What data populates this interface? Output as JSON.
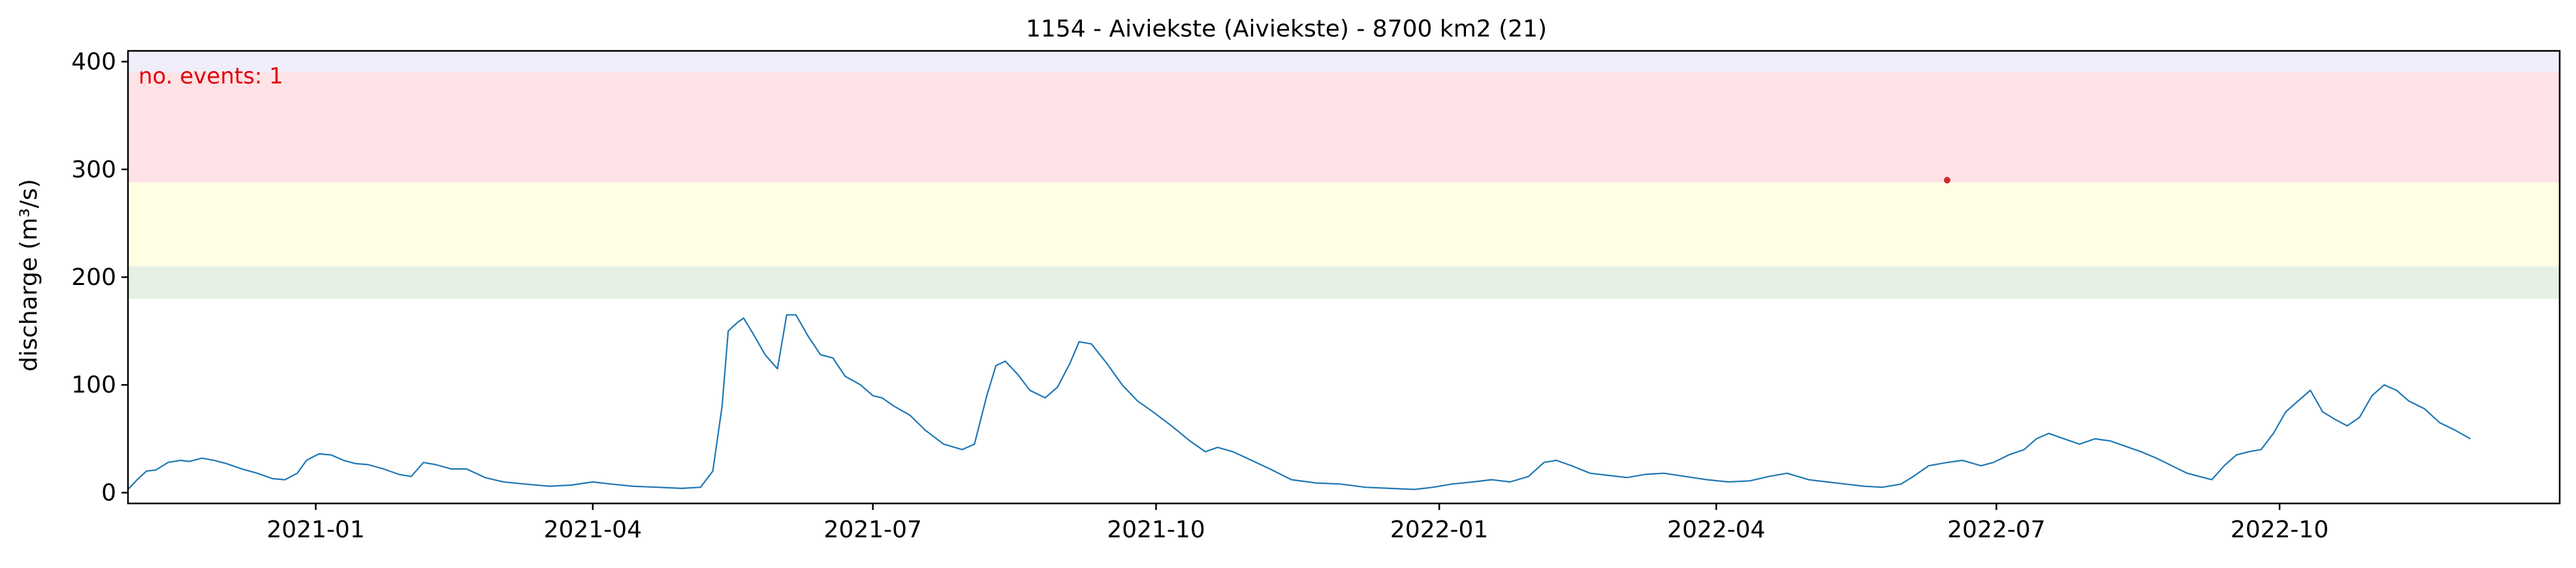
{
  "chart_data": {
    "type": "line",
    "title": "1154 - Aiviekste (Aiviekste) - 8700 km2 (21)",
    "xlabel": "",
    "ylabel": "discharge (m³/s)",
    "annotation": "no. events: 1",
    "annotation_color": "#e00000",
    "line_color": "#1f77b4",
    "event_marker_color": "#d62728",
    "grid": false,
    "xlim": [
      "2020-11-01",
      "2022-12-31"
    ],
    "ylim": [
      -10,
      410
    ],
    "yticks": [
      0,
      100,
      200,
      300,
      400
    ],
    "xticks": [
      {
        "date": "2021-01-01",
        "label": "2021-01"
      },
      {
        "date": "2021-04-01",
        "label": "2021-04"
      },
      {
        "date": "2021-07-01",
        "label": "2021-07"
      },
      {
        "date": "2021-10-01",
        "label": "2021-10"
      },
      {
        "date": "2022-01-01",
        "label": "2022-01"
      },
      {
        "date": "2022-04-01",
        "label": "2022-04"
      },
      {
        "date": "2022-07-01",
        "label": "2022-07"
      },
      {
        "date": "2022-10-01",
        "label": "2022-10"
      }
    ],
    "threshold_bands": [
      {
        "from": 180,
        "to": 210,
        "color": "#e4f1e4"
      },
      {
        "from": 210,
        "to": 288,
        "color": "#fefee4"
      },
      {
        "from": 288,
        "to": 390,
        "color": "#fee2e6"
      },
      {
        "from": 390,
        "to": 410,
        "color": "#efeefa"
      }
    ],
    "events": [
      {
        "date": "2022-06-15",
        "value": 290
      }
    ],
    "series": [
      {
        "points": [
          [
            "2020-11-01",
            3
          ],
          [
            "2020-11-04",
            12
          ],
          [
            "2020-11-07",
            20
          ],
          [
            "2020-11-10",
            21
          ],
          [
            "2020-11-14",
            28
          ],
          [
            "2020-11-18",
            30
          ],
          [
            "2020-11-21",
            29
          ],
          [
            "2020-11-25",
            32
          ],
          [
            "2020-11-29",
            30
          ],
          [
            "2020-12-03",
            27
          ],
          [
            "2020-12-08",
            22
          ],
          [
            "2020-12-13",
            18
          ],
          [
            "2020-12-18",
            13
          ],
          [
            "2020-12-22",
            12
          ],
          [
            "2020-12-26",
            18
          ],
          [
            "2020-12-29",
            30
          ],
          [
            "2021-01-02",
            36
          ],
          [
            "2021-01-06",
            35
          ],
          [
            "2021-01-10",
            30
          ],
          [
            "2021-01-14",
            27
          ],
          [
            "2021-01-18",
            26
          ],
          [
            "2021-01-23",
            22
          ],
          [
            "2021-01-28",
            17
          ],
          [
            "2021-02-01",
            15
          ],
          [
            "2021-02-05",
            28
          ],
          [
            "2021-02-09",
            26
          ],
          [
            "2021-02-14",
            22
          ],
          [
            "2021-02-19",
            22
          ],
          [
            "2021-02-25",
            14
          ],
          [
            "2021-03-03",
            10
          ],
          [
            "2021-03-10",
            8
          ],
          [
            "2021-03-18",
            6
          ],
          [
            "2021-03-25",
            7
          ],
          [
            "2021-04-01",
            10
          ],
          [
            "2021-04-07",
            8
          ],
          [
            "2021-04-14",
            6
          ],
          [
            "2021-04-22",
            5
          ],
          [
            "2021-04-30",
            4
          ],
          [
            "2021-05-06",
            5
          ],
          [
            "2021-05-10",
            20
          ],
          [
            "2021-05-13",
            80
          ],
          [
            "2021-05-15",
            150
          ],
          [
            "2021-05-18",
            158
          ],
          [
            "2021-05-20",
            162
          ],
          [
            "2021-05-23",
            148
          ],
          [
            "2021-05-27",
            128
          ],
          [
            "2021-05-31",
            115
          ],
          [
            "2021-06-03",
            165
          ],
          [
            "2021-06-06",
            165
          ],
          [
            "2021-06-10",
            145
          ],
          [
            "2021-06-14",
            128
          ],
          [
            "2021-06-18",
            125
          ],
          [
            "2021-06-22",
            108
          ],
          [
            "2021-06-27",
            100
          ],
          [
            "2021-07-01",
            90
          ],
          [
            "2021-07-04",
            88
          ],
          [
            "2021-07-08",
            80
          ],
          [
            "2021-07-13",
            72
          ],
          [
            "2021-07-18",
            58
          ],
          [
            "2021-07-24",
            45
          ],
          [
            "2021-07-30",
            40
          ],
          [
            "2021-08-03",
            45
          ],
          [
            "2021-08-07",
            90
          ],
          [
            "2021-08-10",
            118
          ],
          [
            "2021-08-13",
            122
          ],
          [
            "2021-08-17",
            110
          ],
          [
            "2021-08-21",
            95
          ],
          [
            "2021-08-26",
            88
          ],
          [
            "2021-08-30",
            98
          ],
          [
            "2021-09-03",
            120
          ],
          [
            "2021-09-06",
            140
          ],
          [
            "2021-09-10",
            138
          ],
          [
            "2021-09-15",
            120
          ],
          [
            "2021-09-20",
            100
          ],
          [
            "2021-09-25",
            85
          ],
          [
            "2021-09-30",
            75
          ],
          [
            "2021-10-06",
            62
          ],
          [
            "2021-10-12",
            48
          ],
          [
            "2021-10-17",
            38
          ],
          [
            "2021-10-21",
            42
          ],
          [
            "2021-10-26",
            38
          ],
          [
            "2021-11-01",
            30
          ],
          [
            "2021-11-07",
            22
          ],
          [
            "2021-11-14",
            12
          ],
          [
            "2021-11-22",
            9
          ],
          [
            "2021-11-30",
            8
          ],
          [
            "2021-12-08",
            5
          ],
          [
            "2021-12-16",
            4
          ],
          [
            "2021-12-24",
            3
          ],
          [
            "2021-12-30",
            5
          ],
          [
            "2022-01-05",
            8
          ],
          [
            "2022-01-12",
            10
          ],
          [
            "2022-01-18",
            12
          ],
          [
            "2022-01-24",
            10
          ],
          [
            "2022-01-30",
            15
          ],
          [
            "2022-02-04",
            28
          ],
          [
            "2022-02-08",
            30
          ],
          [
            "2022-02-13",
            25
          ],
          [
            "2022-02-19",
            18
          ],
          [
            "2022-02-25",
            16
          ],
          [
            "2022-03-03",
            14
          ],
          [
            "2022-03-09",
            17
          ],
          [
            "2022-03-15",
            18
          ],
          [
            "2022-03-22",
            15
          ],
          [
            "2022-03-29",
            12
          ],
          [
            "2022-04-05",
            10
          ],
          [
            "2022-04-12",
            11
          ],
          [
            "2022-04-18",
            15
          ],
          [
            "2022-04-24",
            18
          ],
          [
            "2022-05-01",
            12
          ],
          [
            "2022-05-07",
            10
          ],
          [
            "2022-05-13",
            8
          ],
          [
            "2022-05-19",
            6
          ],
          [
            "2022-05-25",
            5
          ],
          [
            "2022-05-31",
            8
          ],
          [
            "2022-06-04",
            15
          ],
          [
            "2022-06-09",
            25
          ],
          [
            "2022-06-15",
            28
          ],
          [
            "2022-06-20",
            30
          ],
          [
            "2022-06-26",
            25
          ],
          [
            "2022-06-30",
            28
          ],
          [
            "2022-07-05",
            35
          ],
          [
            "2022-07-10",
            40
          ],
          [
            "2022-07-14",
            50
          ],
          [
            "2022-07-18",
            55
          ],
          [
            "2022-07-23",
            50
          ],
          [
            "2022-07-28",
            45
          ],
          [
            "2022-08-02",
            50
          ],
          [
            "2022-08-07",
            48
          ],
          [
            "2022-08-12",
            43
          ],
          [
            "2022-08-17",
            38
          ],
          [
            "2022-08-22",
            32
          ],
          [
            "2022-08-27",
            25
          ],
          [
            "2022-09-01",
            18
          ],
          [
            "2022-09-05",
            15
          ],
          [
            "2022-09-09",
            12
          ],
          [
            "2022-09-13",
            25
          ],
          [
            "2022-09-17",
            35
          ],
          [
            "2022-09-21",
            38
          ],
          [
            "2022-09-25",
            40
          ],
          [
            "2022-09-29",
            55
          ],
          [
            "2022-10-03",
            75
          ],
          [
            "2022-10-07",
            85
          ],
          [
            "2022-10-11",
            95
          ],
          [
            "2022-10-15",
            75
          ],
          [
            "2022-10-19",
            68
          ],
          [
            "2022-10-23",
            62
          ],
          [
            "2022-10-27",
            70
          ],
          [
            "2022-10-31",
            90
          ],
          [
            "2022-11-04",
            100
          ],
          [
            "2022-11-08",
            95
          ],
          [
            "2022-11-12",
            85
          ],
          [
            "2022-11-17",
            78
          ],
          [
            "2022-11-22",
            65
          ],
          [
            "2022-11-27",
            58
          ],
          [
            "2022-12-02",
            50
          ]
        ]
      }
    ]
  }
}
